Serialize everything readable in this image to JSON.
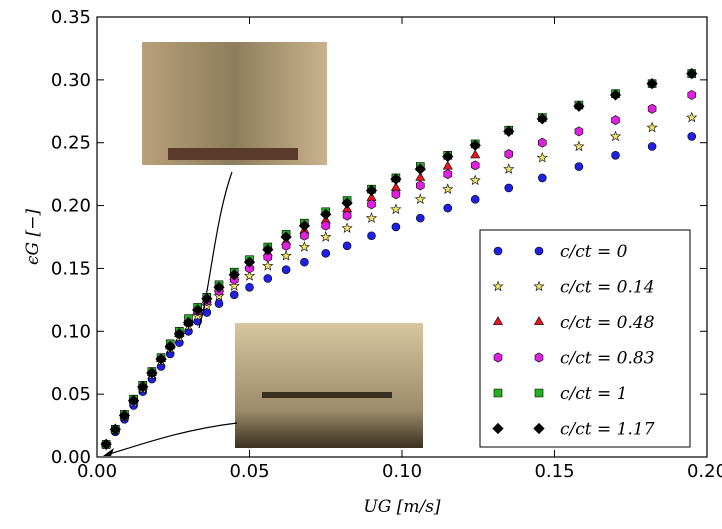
{
  "chart_data": {
    "type": "scatter",
    "x_label": "UG [m/s]",
    "y_label": "ϵG [−]",
    "xlim": [
      0,
      0.2
    ],
    "ylim": [
      0,
      0.35
    ],
    "xticks": [
      {
        "value": 0,
        "label": "0.00"
      },
      0.05,
      {
        "value": 0.1,
        "label": "0.10"
      },
      0.15,
      {
        "value": 0.2,
        "label": "0.20"
      }
    ],
    "yticks": [
      {
        "value": 0,
        "label": "0.00"
      },
      0.05,
      {
        "value": 0.1,
        "label": "0.10"
      },
      0.15,
      {
        "value": 0.2,
        "label": "0.20"
      },
      0.25,
      {
        "value": 0.3,
        "label": "0.30"
      },
      0.35
    ],
    "legend": "lower right",
    "x": [
      0.003,
      0.006,
      0.009,
      0.012,
      0.015,
      0.018,
      0.021,
      0.024,
      0.027,
      0.03,
      0.033,
      0.036,
      0.04,
      0.045,
      0.05,
      0.056,
      0.062,
      0.068,
      0.075,
      0.082,
      0.09,
      0.098,
      0.106,
      0.115,
      0.124,
      0.135,
      0.146,
      0.158,
      0.17,
      0.182,
      0.195
    ],
    "series": [
      {
        "name": "c/ct = 0",
        "color": "#1f1fe6",
        "marker": "circle",
        "values": [
          0.01,
          0.02,
          0.03,
          0.041,
          0.052,
          0.062,
          0.072,
          0.082,
          0.091,
          0.1,
          0.108,
          0.115,
          0.122,
          0.129,
          0.135,
          0.142,
          0.149,
          0.155,
          0.162,
          0.168,
          0.176,
          0.183,
          0.19,
          0.198,
          0.205,
          0.214,
          0.222,
          0.231,
          0.24,
          0.247,
          0.255
        ]
      },
      {
        "name": "c/ct = 0.14",
        "color": "#f2e36b",
        "marker": "star",
        "values": [
          0.01,
          0.021,
          0.032,
          0.043,
          0.054,
          0.065,
          0.076,
          0.086,
          0.095,
          0.104,
          0.112,
          0.12,
          0.128,
          0.136,
          0.144,
          0.152,
          0.16,
          0.167,
          0.175,
          0.182,
          0.19,
          0.197,
          0.205,
          0.213,
          0.22,
          0.229,
          0.238,
          0.247,
          0.255,
          0.262,
          0.27
        ]
      },
      {
        "name": "c/ct = 0.48",
        "color": "#e8141e",
        "marker": "triangle",
        "values": [
          0.01,
          0.022,
          0.033,
          0.045,
          0.056,
          0.067,
          0.078,
          0.088,
          0.098,
          0.107,
          0.116,
          0.125,
          0.134,
          0.143,
          0.152,
          0.162,
          0.171,
          0.18,
          0.188,
          0.197,
          0.206,
          0.214,
          0.222,
          0.231,
          0.24,
          null,
          null,
          null,
          null,
          null,
          null
        ]
      },
      {
        "name": "c/ct = 0.83",
        "color": "#e020e0",
        "marker": "hexagon",
        "values": [
          0.01,
          0.022,
          0.033,
          0.045,
          0.056,
          0.067,
          0.078,
          0.088,
          0.098,
          0.107,
          0.116,
          0.124,
          0.132,
          0.141,
          0.15,
          0.159,
          0.168,
          0.176,
          0.184,
          0.192,
          0.201,
          0.209,
          0.216,
          0.225,
          0.232,
          0.241,
          0.25,
          0.259,
          0.268,
          0.277,
          0.288
        ]
      },
      {
        "name": "c/ct = 1",
        "color": "#22b022",
        "marker": "square",
        "values": [
          0.01,
          0.022,
          0.034,
          0.046,
          0.057,
          0.068,
          0.079,
          0.09,
          0.1,
          0.11,
          0.119,
          0.127,
          0.137,
          0.147,
          0.157,
          0.167,
          0.177,
          0.186,
          0.195,
          0.204,
          0.213,
          0.222,
          0.231,
          0.24,
          0.249,
          0.26,
          0.27,
          0.28,
          0.289,
          0.297,
          0.305
        ]
      },
      {
        "name": "c/ct = 1.17",
        "color": "#000000",
        "marker": "diamond",
        "values": [
          0.01,
          0.022,
          0.033,
          0.045,
          0.056,
          0.067,
          0.078,
          0.088,
          0.098,
          0.107,
          0.117,
          0.126,
          0.135,
          0.145,
          0.155,
          0.165,
          0.175,
          0.184,
          0.193,
          0.202,
          0.212,
          0.221,
          0.229,
          0.239,
          0.248,
          0.259,
          0.269,
          0.279,
          0.288,
          0.297,
          0.305
        ]
      }
    ]
  }
}
